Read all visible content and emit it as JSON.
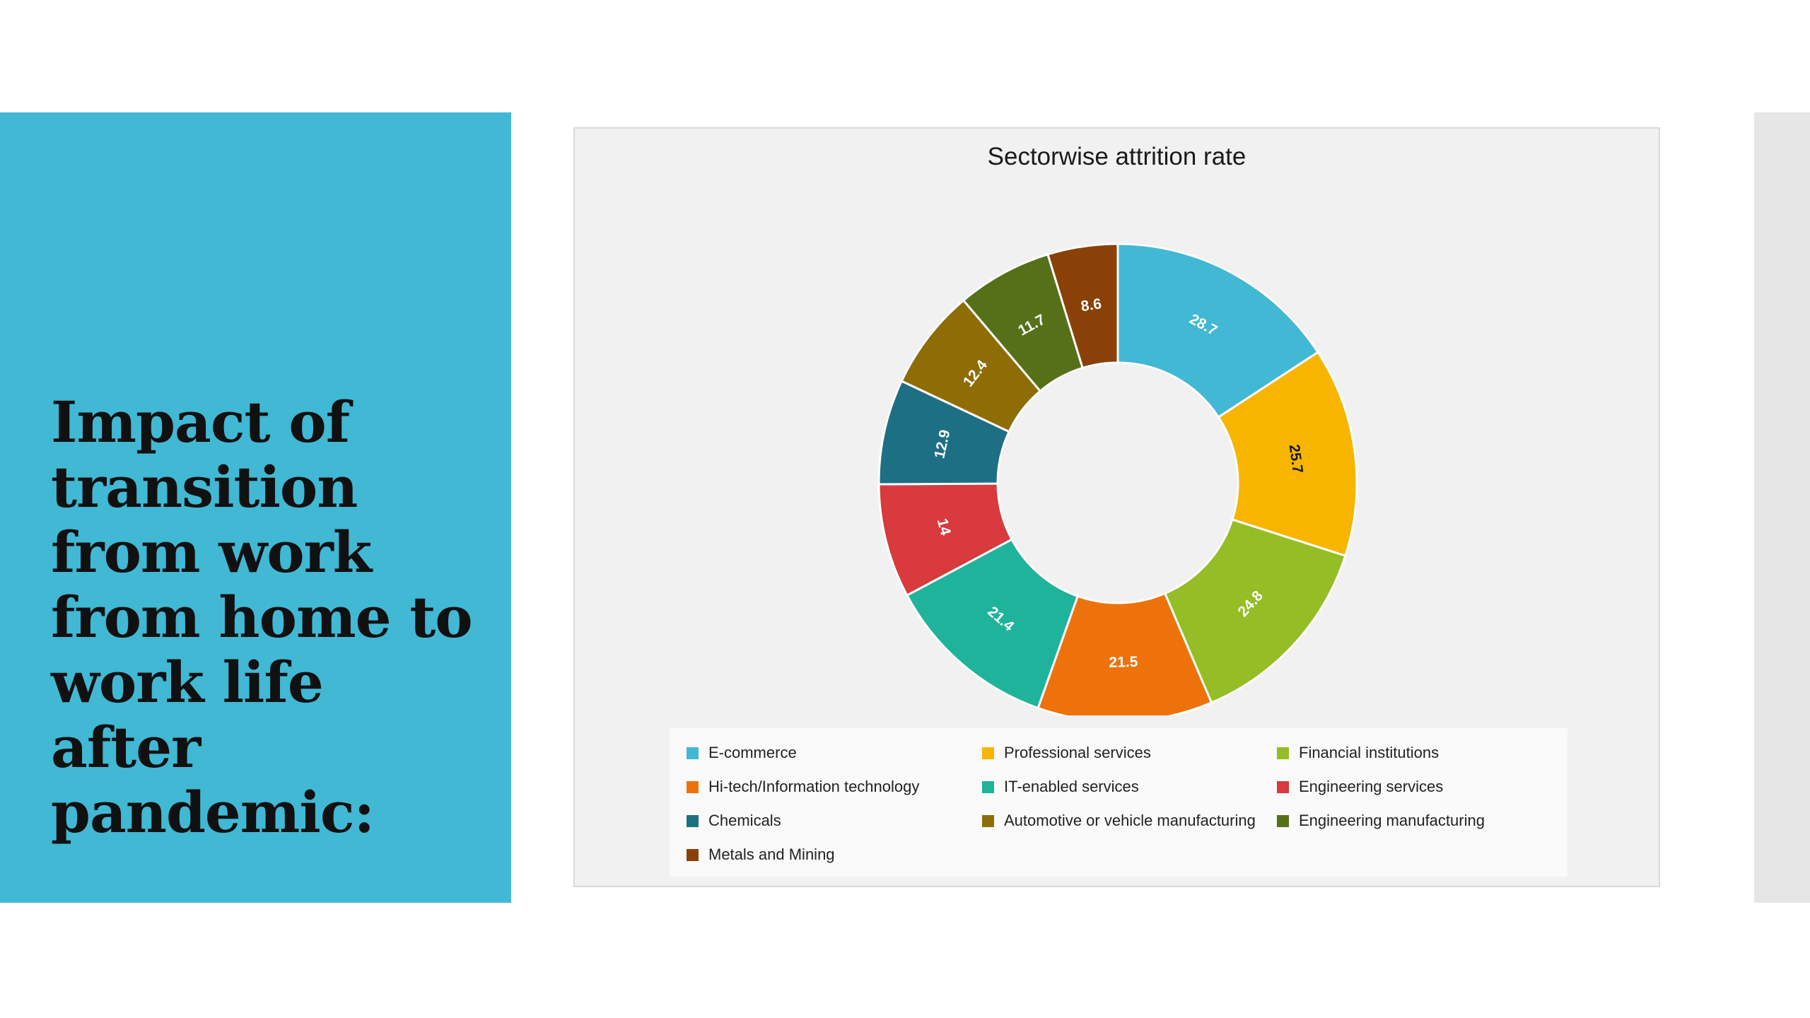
{
  "slide": {
    "title": "Impact of transition from work from home to work life after pandemic:"
  },
  "chart_data": {
    "type": "pie",
    "donut": true,
    "title": "Sectorwise attrition rate",
    "legend_position": "bottom",
    "categories": [
      "E-commerce",
      "Professional services",
      "Financial institutions",
      "Hi-tech/Information technology",
      "IT-enabled services",
      "Engineering services",
      "Chemicals",
      "Automotive or vehicle manufacturing",
      "Engineering manufacturing",
      "Metals and Mining"
    ],
    "values": [
      28.7,
      25.7,
      24.8,
      21.5,
      21.4,
      14,
      12.9,
      12.4,
      11.7,
      8.6
    ],
    "colors": [
      "#41b8d4",
      "#f7b500",
      "#95bd25",
      "#ee720b",
      "#1fb39b",
      "#d83a3d",
      "#1d6f84",
      "#8e6d07",
      "#56701a",
      "#8a4108"
    ]
  }
}
